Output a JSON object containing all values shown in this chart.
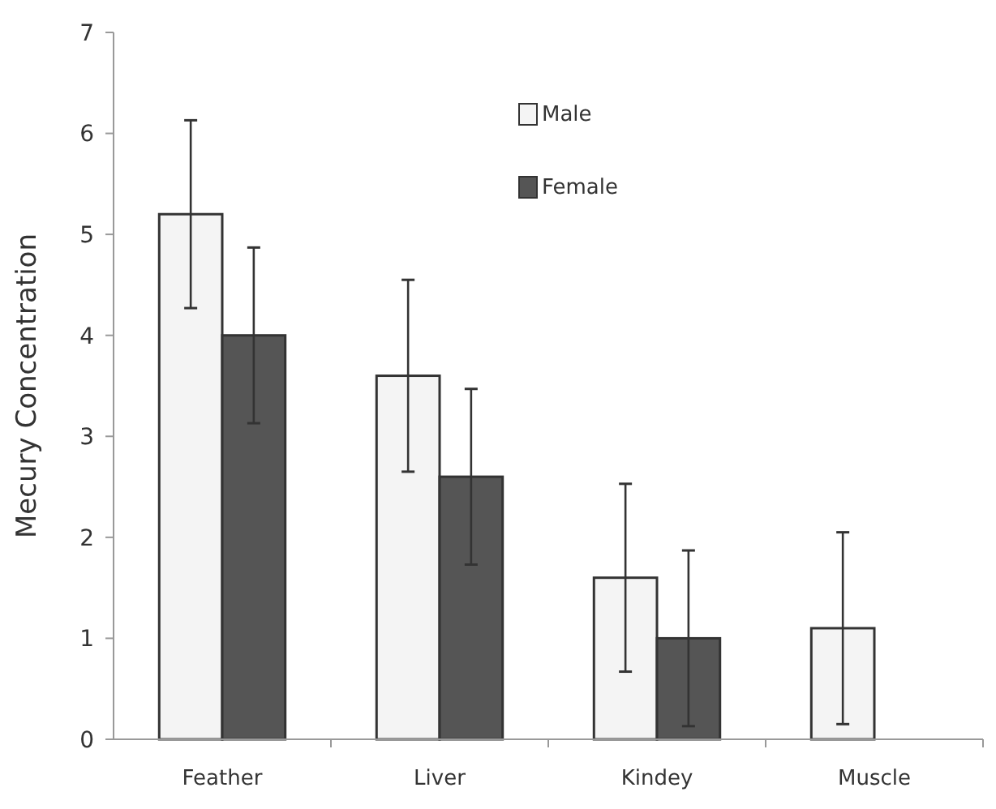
{
  "chart_data": {
    "type": "bar",
    "ylabel": "Mecury Concentration",
    "categories": [
      "Feather",
      "Liver",
      "Kindey",
      "Muscle"
    ],
    "series": [
      {
        "name": "Male",
        "color": "#f4f4f4",
        "values": [
          5.2,
          3.6,
          1.6,
          1.1
        ],
        "errors": [
          0.93,
          0.95,
          0.93,
          0.95
        ]
      },
      {
        "name": "Female",
        "color": "#555555",
        "values": [
          4.0,
          2.6,
          1.0,
          null
        ],
        "errors": [
          0.87,
          0.87,
          0.87,
          null
        ]
      }
    ],
    "ylim": [
      0,
      7
    ],
    "yticks": [
      0,
      1,
      2,
      3,
      4,
      5,
      6,
      7
    ],
    "grid": false,
    "legend": "top"
  }
}
